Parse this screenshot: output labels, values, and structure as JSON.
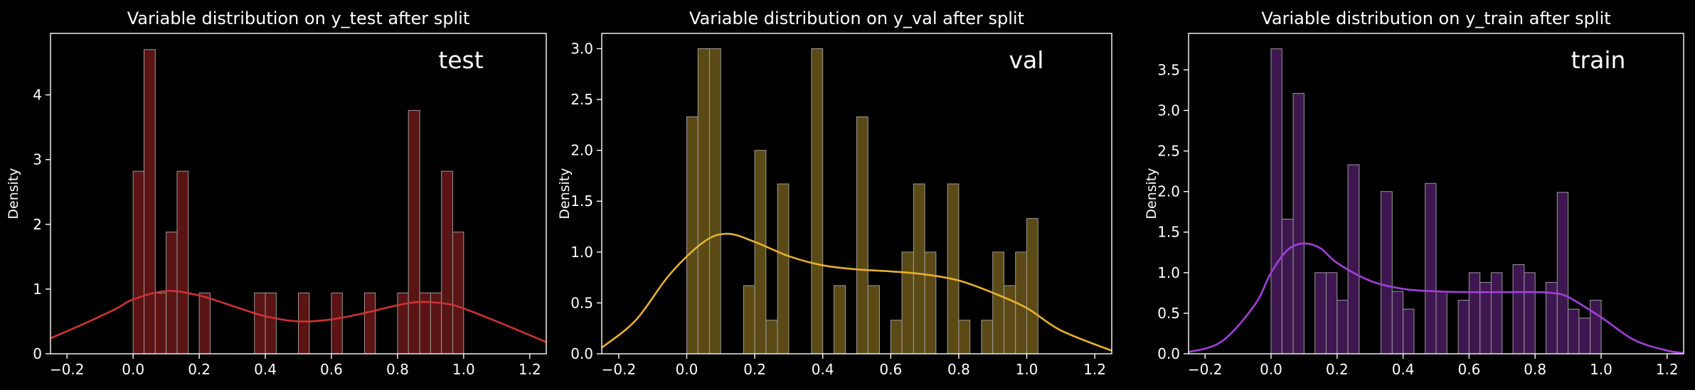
{
  "chart_data": [
    {
      "type": "bar",
      "title": "Variable distribution on y_test after split",
      "xlabel": "",
      "ylabel": "Density",
      "annotation": "test",
      "xlim": [
        -0.25,
        1.25
      ],
      "ylim": [
        0,
        4.95
      ],
      "xticks": [
        -0.2,
        0.0,
        0.2,
        0.4,
        0.6,
        0.8,
        1.0,
        1.2
      ],
      "yticks": [
        0,
        1,
        2,
        3,
        4
      ],
      "grid": false,
      "bar_color": "#5a1414",
      "kde_color": "#cc3333",
      "bins": [
        {
          "x0": 0.0,
          "x1": 0.033,
          "density": 2.82
        },
        {
          "x0": 0.033,
          "x1": 0.067,
          "density": 4.7
        },
        {
          "x0": 0.067,
          "x1": 0.1,
          "density": 0.94
        },
        {
          "x0": 0.1,
          "x1": 0.133,
          "density": 1.88
        },
        {
          "x0": 0.133,
          "x1": 0.167,
          "density": 2.82
        },
        {
          "x0": 0.2,
          "x1": 0.233,
          "density": 0.94
        },
        {
          "x0": 0.367,
          "x1": 0.4,
          "density": 0.94
        },
        {
          "x0": 0.4,
          "x1": 0.433,
          "density": 0.94
        },
        {
          "x0": 0.5,
          "x1": 0.533,
          "density": 0.94
        },
        {
          "x0": 0.6,
          "x1": 0.633,
          "density": 0.94
        },
        {
          "x0": 0.7,
          "x1": 0.733,
          "density": 0.94
        },
        {
          "x0": 0.8,
          "x1": 0.833,
          "density": 0.94
        },
        {
          "x0": 0.833,
          "x1": 0.867,
          "density": 3.76
        },
        {
          "x0": 0.867,
          "x1": 0.9,
          "density": 0.94
        },
        {
          "x0": 0.9,
          "x1": 0.933,
          "density": 0.94
        },
        {
          "x0": 0.933,
          "x1": 0.967,
          "density": 2.82
        },
        {
          "x0": 0.967,
          "x1": 1.0,
          "density": 1.88
        }
      ],
      "kde": {
        "x": [
          -0.25,
          -0.15,
          -0.05,
          0.0,
          0.1,
          0.2,
          0.3,
          0.4,
          0.5,
          0.6,
          0.7,
          0.8,
          0.87,
          0.95,
          1.0,
          1.1,
          1.25
        ],
        "y": [
          0.24,
          0.46,
          0.7,
          0.84,
          0.97,
          0.9,
          0.74,
          0.58,
          0.5,
          0.53,
          0.63,
          0.75,
          0.8,
          0.77,
          0.7,
          0.5,
          0.18
        ]
      }
    },
    {
      "type": "bar",
      "title": "Variable distribution on y_val after split",
      "xlabel": "",
      "ylabel": "Density",
      "annotation": "val",
      "xlim": [
        -0.25,
        1.25
      ],
      "ylim": [
        0,
        3.15
      ],
      "xticks": [
        -0.2,
        0.0,
        0.2,
        0.4,
        0.6,
        0.8,
        1.0,
        1.2
      ],
      "yticks": [
        0.0,
        0.5,
        1.0,
        1.5,
        2.0,
        2.5,
        3.0
      ],
      "grid": false,
      "bar_color": "#5c4a16",
      "kde_color": "#e6b030",
      "bins": [
        {
          "x0": 0.0,
          "x1": 0.033,
          "density": 2.33
        },
        {
          "x0": 0.033,
          "x1": 0.067,
          "density": 3.0
        },
        {
          "x0": 0.067,
          "x1": 0.1,
          "density": 3.0
        },
        {
          "x0": 0.167,
          "x1": 0.2,
          "density": 0.67
        },
        {
          "x0": 0.2,
          "x1": 0.233,
          "density": 2.0
        },
        {
          "x0": 0.233,
          "x1": 0.267,
          "density": 0.33
        },
        {
          "x0": 0.267,
          "x1": 0.3,
          "density": 1.67
        },
        {
          "x0": 0.367,
          "x1": 0.4,
          "density": 3.0
        },
        {
          "x0": 0.433,
          "x1": 0.467,
          "density": 0.67
        },
        {
          "x0": 0.5,
          "x1": 0.533,
          "density": 2.33
        },
        {
          "x0": 0.533,
          "x1": 0.567,
          "density": 0.67
        },
        {
          "x0": 0.6,
          "x1": 0.633,
          "density": 0.33
        },
        {
          "x0": 0.633,
          "x1": 0.667,
          "density": 1.0
        },
        {
          "x0": 0.667,
          "x1": 0.7,
          "density": 1.67
        },
        {
          "x0": 0.7,
          "x1": 0.733,
          "density": 1.0
        },
        {
          "x0": 0.767,
          "x1": 0.8,
          "density": 1.67
        },
        {
          "x0": 0.8,
          "x1": 0.833,
          "density": 0.33
        },
        {
          "x0": 0.867,
          "x1": 0.9,
          "density": 0.33
        },
        {
          "x0": 0.9,
          "x1": 0.933,
          "density": 1.0
        },
        {
          "x0": 0.933,
          "x1": 0.967,
          "density": 0.67
        },
        {
          "x0": 0.967,
          "x1": 1.0,
          "density": 1.0
        },
        {
          "x0": 1.0,
          "x1": 1.033,
          "density": 1.33
        }
      ],
      "kde": {
        "x": [
          -0.25,
          -0.15,
          -0.05,
          0.05,
          0.12,
          0.2,
          0.3,
          0.4,
          0.5,
          0.6,
          0.7,
          0.8,
          0.9,
          1.0,
          1.1,
          1.25
        ],
        "y": [
          0.06,
          0.33,
          0.78,
          1.1,
          1.18,
          1.1,
          0.96,
          0.87,
          0.83,
          0.81,
          0.78,
          0.72,
          0.6,
          0.45,
          0.23,
          0.03
        ]
      }
    },
    {
      "type": "bar",
      "title": "Variable distribution on y_train after split",
      "xlabel": "",
      "ylabel": "Density",
      "annotation": "train",
      "xlim": [
        -0.25,
        1.25
      ],
      "ylim": [
        0,
        3.95
      ],
      "xticks": [
        -0.2,
        0.0,
        0.2,
        0.4,
        0.6,
        0.8,
        1.0,
        1.2
      ],
      "yticks": [
        0.0,
        0.5,
        1.0,
        1.5,
        2.0,
        2.5,
        3.0,
        3.5
      ],
      "grid": false,
      "bar_color": "#3e1750",
      "kde_color": "#a040d8",
      "bins": [
        {
          "x0": 0.0,
          "x1": 0.033,
          "density": 3.76
        },
        {
          "x0": 0.033,
          "x1": 0.067,
          "density": 1.66
        },
        {
          "x0": 0.067,
          "x1": 0.1,
          "density": 3.21
        },
        {
          "x0": 0.133,
          "x1": 0.167,
          "density": 1.0
        },
        {
          "x0": 0.167,
          "x1": 0.2,
          "density": 1.0
        },
        {
          "x0": 0.2,
          "x1": 0.233,
          "density": 0.66
        },
        {
          "x0": 0.233,
          "x1": 0.267,
          "density": 2.33
        },
        {
          "x0": 0.333,
          "x1": 0.367,
          "density": 2.0
        },
        {
          "x0": 0.367,
          "x1": 0.4,
          "density": 0.77
        },
        {
          "x0": 0.4,
          "x1": 0.433,
          "density": 0.55
        },
        {
          "x0": 0.467,
          "x1": 0.5,
          "density": 2.1
        },
        {
          "x0": 0.5,
          "x1": 0.533,
          "density": 0.77
        },
        {
          "x0": 0.567,
          "x1": 0.6,
          "density": 0.66
        },
        {
          "x0": 0.6,
          "x1": 0.633,
          "density": 1.0
        },
        {
          "x0": 0.633,
          "x1": 0.667,
          "density": 0.88
        },
        {
          "x0": 0.667,
          "x1": 0.7,
          "density": 1.0
        },
        {
          "x0": 0.733,
          "x1": 0.767,
          "density": 1.1
        },
        {
          "x0": 0.767,
          "x1": 0.8,
          "density": 1.0
        },
        {
          "x0": 0.833,
          "x1": 0.867,
          "density": 0.88
        },
        {
          "x0": 0.867,
          "x1": 0.9,
          "density": 1.99
        },
        {
          "x0": 0.9,
          "x1": 0.933,
          "density": 0.55
        },
        {
          "x0": 0.933,
          "x1": 0.967,
          "density": 0.44
        },
        {
          "x0": 0.967,
          "x1": 1.0,
          "density": 0.66
        }
      ],
      "kde": {
        "x": [
          -0.25,
          -0.15,
          -0.05,
          0.0,
          0.05,
          0.1,
          0.15,
          0.2,
          0.3,
          0.4,
          0.5,
          0.6,
          0.7,
          0.8,
          0.85,
          0.9,
          1.0,
          1.1,
          1.2,
          1.25
        ],
        "y": [
          0.02,
          0.15,
          0.6,
          1.0,
          1.28,
          1.36,
          1.3,
          1.12,
          0.9,
          0.8,
          0.77,
          0.76,
          0.76,
          0.76,
          0.75,
          0.7,
          0.45,
          0.17,
          0.04,
          0.01
        ]
      }
    }
  ]
}
